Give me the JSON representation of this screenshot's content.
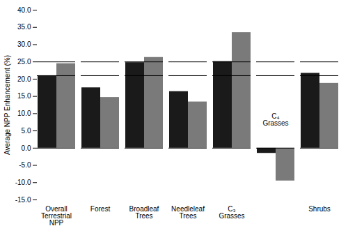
{
  "chart_data": {
    "type": "bar",
    "categories": [
      "Overall\nTerrestrial\nNPP",
      "Forest",
      "Broadleaf\nTrees",
      "Needleleaf\nTrees",
      "C₃\nGrasses",
      null,
      "Shrubs"
    ],
    "series": [
      {
        "color": "#1a1a1a",
        "values": [
          21.0,
          17.5,
          24.8,
          16.4,
          25.1,
          -1.5,
          21.7
        ]
      },
      {
        "color": "#7a7a7a",
        "values": [
          24.5,
          14.7,
          26.3,
          13.4,
          33.5,
          -9.5,
          18.8
        ]
      }
    ],
    "reference_lines": [
      21.0,
      25.0
    ],
    "ylabel": "Average NPP Enhancement (%)",
    "ylim": [
      -15.0,
      40.0
    ],
    "yticks": [
      {
        "value": -15.0,
        "label": "-15.0"
      },
      {
        "value": -10.0,
        "label": "-10.0"
      },
      {
        "value": -5.0,
        "label": "-5.0"
      },
      {
        "value": 0.0,
        "label": "0.0"
      },
      {
        "value": 5.0,
        "label": "5.0"
      },
      {
        "value": 10.0,
        "label": "10.0"
      },
      {
        "value": 15.0,
        "label": "15.0"
      },
      {
        "value": 20.0,
        "label": "20.0"
      },
      {
        "value": 25.0,
        "label": "25.0"
      },
      {
        "value": 30.0,
        "label": "30.0"
      },
      {
        "value": 35.0,
        "label": "35.0"
      },
      {
        "value": 40.0,
        "label": "40.0"
      }
    ],
    "annotations": [
      {
        "text": "C₄\nGrasses",
        "x": 5,
        "y": 6.5
      }
    ],
    "grid": false
  }
}
